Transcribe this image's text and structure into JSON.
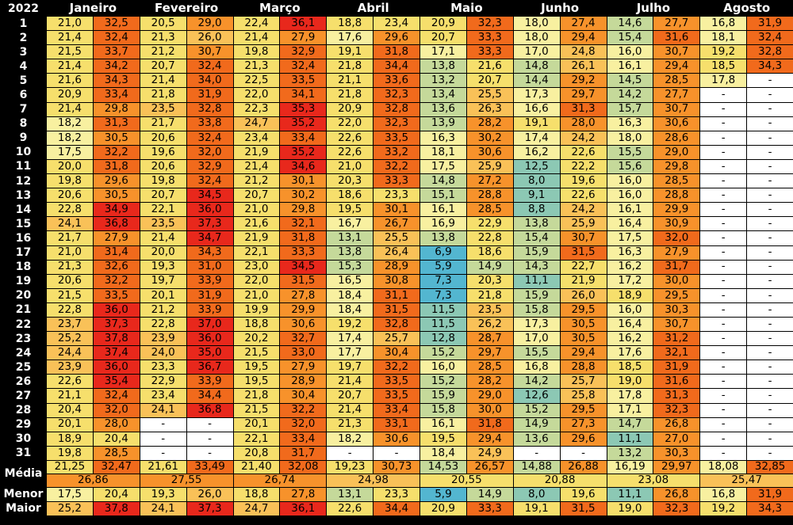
{
  "year": "2022",
  "months": [
    "Janeiro",
    "Fevereiro",
    "Março",
    "Abril",
    "Maio",
    "Junho",
    "Julho",
    "Agosto"
  ],
  "row_labels": {
    "media": "Média",
    "menor": "Menor",
    "maior": "Maior"
  },
  "rows": [
    {
      "day": "1",
      "v": [
        "21,0",
        "32,5",
        "20,5",
        "29,0",
        "22,4",
        "36,1",
        "18,8",
        "23,4",
        "20,9",
        "32,3",
        "18,0",
        "27,4",
        "14,6",
        "27,7",
        "16,8",
        "31,9"
      ]
    },
    {
      "day": "2",
      "v": [
        "21,4",
        "32,4",
        "21,3",
        "26,0",
        "21,4",
        "27,9",
        "17,6",
        "29,6",
        "20,7",
        "33,3",
        "18,0",
        "29,4",
        "15,4",
        "31,6",
        "18,1",
        "32,4"
      ]
    },
    {
      "day": "3",
      "v": [
        "21,5",
        "33,7",
        "21,2",
        "30,7",
        "19,8",
        "32,9",
        "19,1",
        "31,8",
        "17,1",
        "33,3",
        "17,0",
        "24,8",
        "16,0",
        "30,7",
        "19,2",
        "32,8"
      ]
    },
    {
      "day": "4",
      "v": [
        "21,4",
        "34,2",
        "20,7",
        "32,4",
        "21,3",
        "32,4",
        "21,8",
        "34,4",
        "13,8",
        "21,6",
        "14,8",
        "26,1",
        "16,1",
        "29,4",
        "18,5",
        "34,3"
      ]
    },
    {
      "day": "5",
      "v": [
        "21,6",
        "34,3",
        "21,4",
        "34,0",
        "22,5",
        "33,5",
        "21,1",
        "33,6",
        "13,2",
        "20,7",
        "14,4",
        "29,2",
        "14,5",
        "28,5",
        "17,8",
        "-"
      ]
    },
    {
      "day": "6",
      "v": [
        "20,9",
        "33,4",
        "21,8",
        "31,9",
        "22,0",
        "34,1",
        "21,8",
        "32,3",
        "13,4",
        "25,5",
        "17,3",
        "29,7",
        "14,2",
        "27,7",
        "-",
        "-"
      ]
    },
    {
      "day": "7",
      "v": [
        "21,4",
        "29,8",
        "23,5",
        "32,8",
        "22,3",
        "35,3",
        "20,9",
        "32,8",
        "13,6",
        "26,3",
        "16,6",
        "31,3",
        "15,7",
        "30,7",
        "-",
        "-"
      ]
    },
    {
      "day": "8",
      "v": [
        "18,2",
        "31,3",
        "21,7",
        "33,8",
        "24,7",
        "35,2",
        "22,0",
        "32,3",
        "13,9",
        "28,2",
        "19,1",
        "28,0",
        "16,3",
        "30,6",
        "-",
        "-"
      ]
    },
    {
      "day": "9",
      "v": [
        "18,2",
        "30,5",
        "20,6",
        "32,4",
        "23,4",
        "33,4",
        "22,6",
        "33,5",
        "16,3",
        "30,2",
        "17,4",
        "24,2",
        "18,0",
        "28,6",
        "-",
        "-"
      ]
    },
    {
      "day": "10",
      "v": [
        "17,5",
        "32,2",
        "19,6",
        "32,0",
        "21,9",
        "35,2",
        "22,6",
        "33,2",
        "18,1",
        "30,6",
        "16,2",
        "22,6",
        "15,5",
        "29,0",
        "-",
        "-"
      ]
    },
    {
      "day": "11",
      "v": [
        "20,0",
        "31,8",
        "20,6",
        "32,9",
        "21,4",
        "34,6",
        "21,0",
        "32,2",
        "17,5",
        "25,9",
        "12,5",
        "22,2",
        "15,6",
        "29,8",
        "-",
        "-"
      ]
    },
    {
      "day": "12",
      "v": [
        "19,8",
        "29,6",
        "19,8",
        "32,4",
        "21,2",
        "30,1",
        "20,3",
        "33,3",
        "14,8",
        "27,2",
        "8,0",
        "19,6",
        "16,0",
        "28,5",
        "-",
        "-"
      ]
    },
    {
      "day": "13",
      "v": [
        "20,6",
        "30,5",
        "20,7",
        "34,5",
        "20,7",
        "30,2",
        "18,6",
        "23,3",
        "15,1",
        "28,8",
        "9,1",
        "22,6",
        "16,0",
        "28,8",
        "-",
        "-"
      ]
    },
    {
      "day": "14",
      "v": [
        "22,8",
        "34,9",
        "22,1",
        "36,0",
        "21,0",
        "29,8",
        "19,5",
        "30,1",
        "16,1",
        "28,5",
        "8,8",
        "24,2",
        "16,1",
        "29,9",
        "-",
        "-"
      ]
    },
    {
      "day": "15",
      "v": [
        "24,1",
        "36,8",
        "23,5",
        "37,3",
        "21,6",
        "32,1",
        "16,7",
        "26,7",
        "16,9",
        "22,9",
        "13,8",
        "25,9",
        "16,4",
        "30,9",
        "-",
        "-"
      ]
    },
    {
      "day": "16",
      "v": [
        "21,7",
        "27,9",
        "21,4",
        "34,7",
        "21,9",
        "31,8",
        "13,1",
        "25,5",
        "13,8",
        "22,8",
        "15,4",
        "30,7",
        "17,5",
        "32,0",
        "-",
        "-"
      ]
    },
    {
      "day": "17",
      "v": [
        "21,0",
        "31,4",
        "20,0",
        "34,3",
        "22,1",
        "33,3",
        "13,8",
        "26,4",
        "6,9",
        "18,6",
        "15,9",
        "31,5",
        "16,3",
        "27,9",
        "-",
        "-"
      ]
    },
    {
      "day": "18",
      "v": [
        "21,3",
        "32,6",
        "19,3",
        "31,0",
        "23,0",
        "34,5",
        "15,3",
        "28,9",
        "5,9",
        "14,9",
        "14,3",
        "22,7",
        "16,2",
        "31,7",
        "-",
        "-"
      ]
    },
    {
      "day": "19",
      "v": [
        "20,6",
        "32,2",
        "19,7",
        "33,9",
        "22,0",
        "31,5",
        "16,5",
        "30,8",
        "7,3",
        "20,3",
        "11,1",
        "21,9",
        "17,2",
        "30,0",
        "-",
        "-"
      ]
    },
    {
      "day": "20",
      "v": [
        "21,5",
        "33,5",
        "20,1",
        "31,9",
        "21,0",
        "27,8",
        "18,4",
        "31,1",
        "7,3",
        "21,8",
        "15,9",
        "26,0",
        "18,9",
        "29,5",
        "-",
        "-"
      ]
    },
    {
      "day": "21",
      "v": [
        "22,8",
        "36,0",
        "21,2",
        "33,9",
        "19,9",
        "29,9",
        "18,4",
        "31,5",
        "11,5",
        "23,5",
        "15,8",
        "29,5",
        "16,0",
        "30,3",
        "-",
        "-"
      ]
    },
    {
      "day": "22",
      "v": [
        "23,7",
        "37,3",
        "22,8",
        "37,0",
        "18,8",
        "30,6",
        "19,2",
        "32,8",
        "11,5",
        "26,2",
        "17,3",
        "30,5",
        "16,4",
        "30,7",
        "-",
        "-"
      ]
    },
    {
      "day": "23",
      "v": [
        "25,2",
        "37,8",
        "23,9",
        "36,0",
        "20,2",
        "32,7",
        "17,4",
        "25,7",
        "12,8",
        "28,7",
        "17,0",
        "30,5",
        "16,2",
        "31,2",
        "-",
        "-"
      ]
    },
    {
      "day": "24",
      "v": [
        "24,4",
        "37,4",
        "24,0",
        "35,0",
        "21,5",
        "33,0",
        "17,7",
        "30,4",
        "15,2",
        "29,7",
        "15,5",
        "29,4",
        "17,6",
        "32,1",
        "-",
        "-"
      ]
    },
    {
      "day": "25",
      "v": [
        "23,9",
        "36,0",
        "23,3",
        "36,7",
        "19,5",
        "27,9",
        "19,7",
        "32,2",
        "16,0",
        "28,5",
        "16,8",
        "28,8",
        "18,5",
        "31,9",
        "-",
        "-"
      ]
    },
    {
      "day": "26",
      "v": [
        "22,6",
        "35,4",
        "22,9",
        "33,9",
        "19,5",
        "28,9",
        "21,4",
        "33,5",
        "15,2",
        "28,2",
        "14,2",
        "25,7",
        "19,0",
        "31,6",
        "-",
        "-"
      ]
    },
    {
      "day": "27",
      "v": [
        "21,1",
        "32,4",
        "23,4",
        "34,4",
        "21,8",
        "30,4",
        "20,7",
        "33,5",
        "15,9",
        "29,0",
        "12,6",
        "25,8",
        "17,8",
        "31,3",
        "-",
        "-"
      ]
    },
    {
      "day": "28",
      "v": [
        "20,4",
        "32,0",
        "24,1",
        "36,8",
        "21,5",
        "32,2",
        "21,4",
        "33,4",
        "15,8",
        "30,0",
        "15,2",
        "29,5",
        "17,1",
        "32,3",
        "-",
        "-"
      ]
    },
    {
      "day": "29",
      "v": [
        "20,1",
        "28,0",
        "-",
        "-",
        "20,1",
        "32,0",
        "21,3",
        "33,1",
        "16,1",
        "31,8",
        "14,9",
        "27,3",
        "14,7",
        "26,8",
        "-",
        "-"
      ]
    },
    {
      "day": "30",
      "v": [
        "18,9",
        "20,4",
        "-",
        "-",
        "22,1",
        "33,4",
        "18,2",
        "30,6",
        "19,5",
        "29,4",
        "13,6",
        "29,6",
        "11,1",
        "27,0",
        "-",
        "-"
      ]
    },
    {
      "day": "31",
      "v": [
        "19,8",
        "28,5",
        "-",
        "-",
        "20,8",
        "31,7",
        "-",
        "-",
        "18,4",
        "24,9",
        "-",
        "-",
        "13,2",
        "30,3",
        "-",
        "-"
      ]
    }
  ],
  "media": [
    "21,25",
    "32,47",
    "21,61",
    "33,49",
    "21,40",
    "32,08",
    "19,23",
    "30,73",
    "14,53",
    "26,57",
    "14,88",
    "26,88",
    "16,19",
    "29,97",
    "18,08",
    "32,85"
  ],
  "media_month": [
    "26,86",
    "27,55",
    "26,74",
    "24,98",
    "20,55",
    "20,88",
    "23,08",
    "25,47"
  ],
  "menor": [
    "17,5",
    "20,4",
    "19,3",
    "26,0",
    "18,8",
    "27,8",
    "13,1",
    "23,3",
    "5,9",
    "14,9",
    "8,0",
    "19,6",
    "11,1",
    "26,8",
    "16,8",
    "31,9"
  ],
  "maior": [
    "25,2",
    "37,8",
    "24,1",
    "37,3",
    "24,7",
    "36,1",
    "22,6",
    "34,4",
    "20,9",
    "33,3",
    "19,1",
    "31,5",
    "19,0",
    "32,3",
    "19,2",
    "34,3"
  ],
  "colors": {
    "blue": "#53b6d0",
    "teal": "#8cc8b4",
    "lightgreen": "#c5d99a",
    "lightyellow": "#f8f0a0",
    "yellow": "#f6df6c",
    "lightorange": "#f9c158",
    "orange": "#f7922b",
    "darkorange": "#f16a1c",
    "red": "#e8281c",
    "dash": "#ffffff"
  }
}
